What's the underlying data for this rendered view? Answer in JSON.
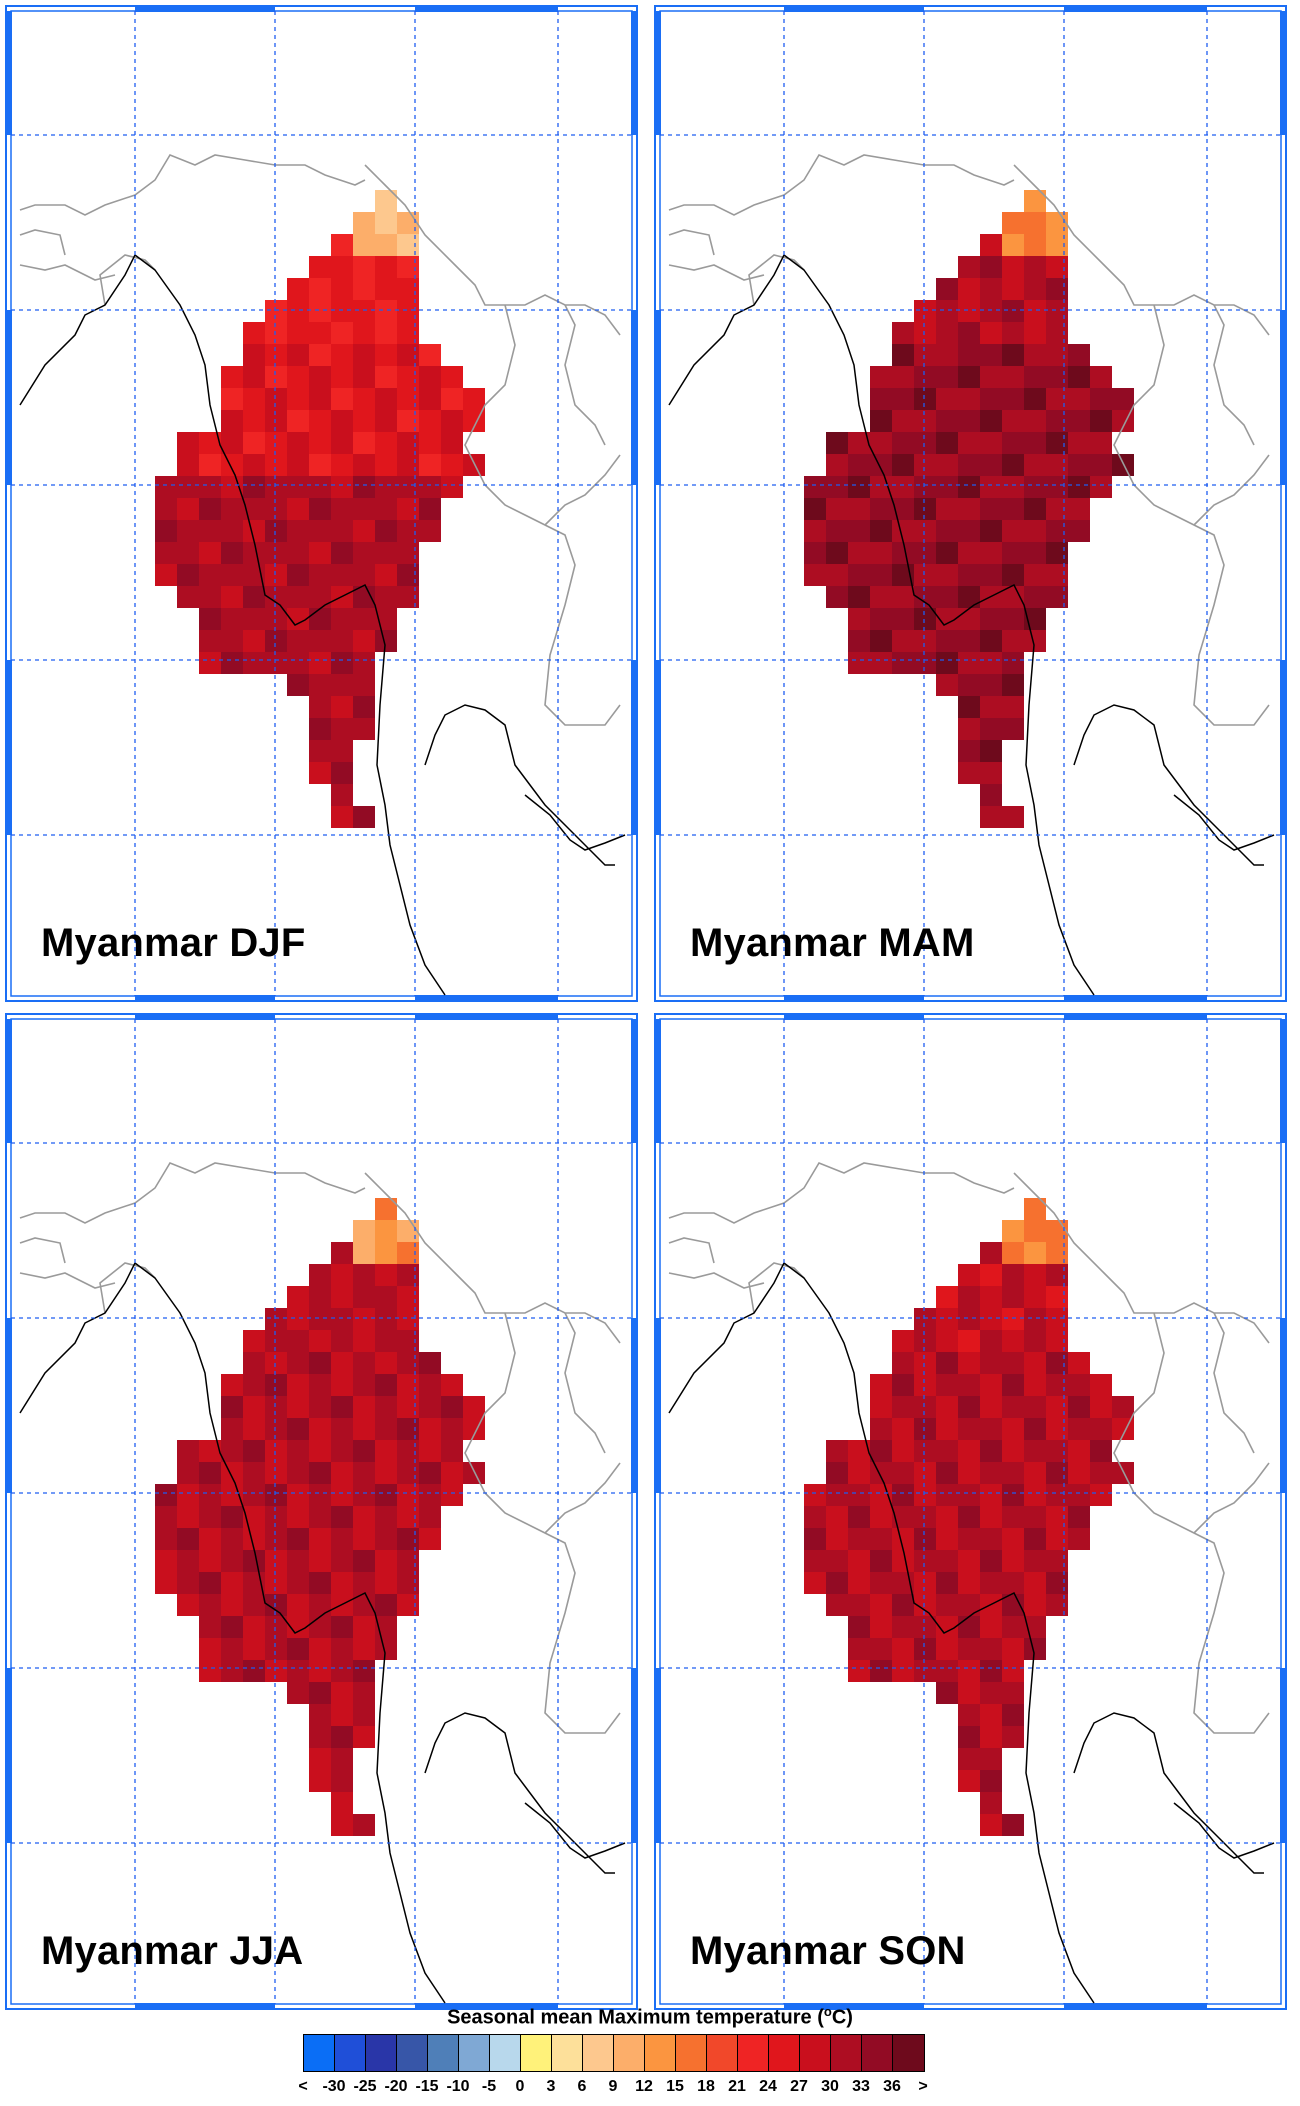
{
  "panels": [
    {
      "title": "Myanmar DJF",
      "season": "DJF"
    },
    {
      "title": "Myanmar MAM",
      "season": "MAM"
    },
    {
      "title": "Myanmar JJA",
      "season": "JJA"
    },
    {
      "title": "Myanmar SON",
      "season": "SON"
    }
  ],
  "colorbar": {
    "title": "Seasonal mean Maximum temperature (",
    "unit_o": "o",
    "unit_c": "C)",
    "labels": [
      "<",
      "-30",
      "-25",
      "-20",
      "-15",
      "-10",
      "-5",
      "0",
      "3",
      "6",
      "9",
      "12",
      "15",
      "18",
      "21",
      "24",
      "27",
      "30",
      "33",
      "36",
      ">"
    ],
    "colors": [
      "#0a6ef6",
      "#1f4fd8",
      "#2936a8",
      "#3756a8",
      "#4f7fb8",
      "#7fa8d4",
      "#b8d8ec",
      "#fff27a",
      "#fde09a",
      "#fdc88e",
      "#fcae6a",
      "#fb9540",
      "#f6712f",
      "#f1482a",
      "#ef2424",
      "#e0161c",
      "#c90f1d",
      "#ad0d22",
      "#920b24",
      "#6e0a1c"
    ]
  },
  "colors": {
    "frame_blue": "#1a6ef5",
    "grid_blue": "#1f5ef0",
    "coast": "#000000",
    "border": "#9a9a9a"
  }
}
